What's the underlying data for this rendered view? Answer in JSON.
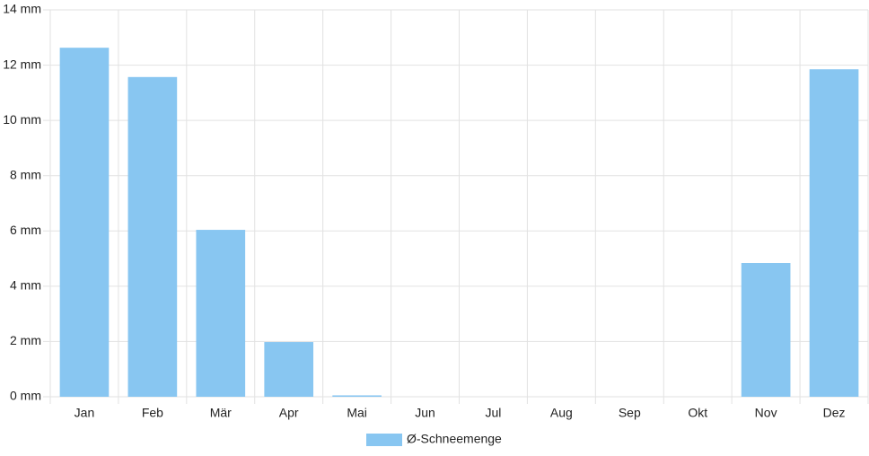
{
  "chart_data": {
    "type": "bar",
    "categories": [
      "Jan",
      "Feb",
      "Mär",
      "Apr",
      "Mai",
      "Jun",
      "Jul",
      "Aug",
      "Sep",
      "Okt",
      "Nov",
      "Dez"
    ],
    "series": [
      {
        "name": "Ø-Schneemenge",
        "color": "#88c6f1",
        "values": [
          12.63,
          11.57,
          6.04,
          1.98,
          0.05,
          0,
          0,
          0,
          0,
          0,
          4.84,
          11.85
        ]
      }
    ],
    "ylim": [
      0,
      14
    ],
    "yticks": [
      {
        "value": 0,
        "label": "0 mm"
      },
      {
        "value": 2,
        "label": "2 mm"
      },
      {
        "value": 4,
        "label": "4 mm"
      },
      {
        "value": 6,
        "label": "6 mm"
      },
      {
        "value": 8,
        "label": "8 mm"
      },
      {
        "value": 10,
        "label": "10 mm"
      },
      {
        "value": 12,
        "label": "12 mm"
      },
      {
        "value": 14,
        "label": "14 mm"
      }
    ],
    "grid": true,
    "legend": "bottom"
  }
}
